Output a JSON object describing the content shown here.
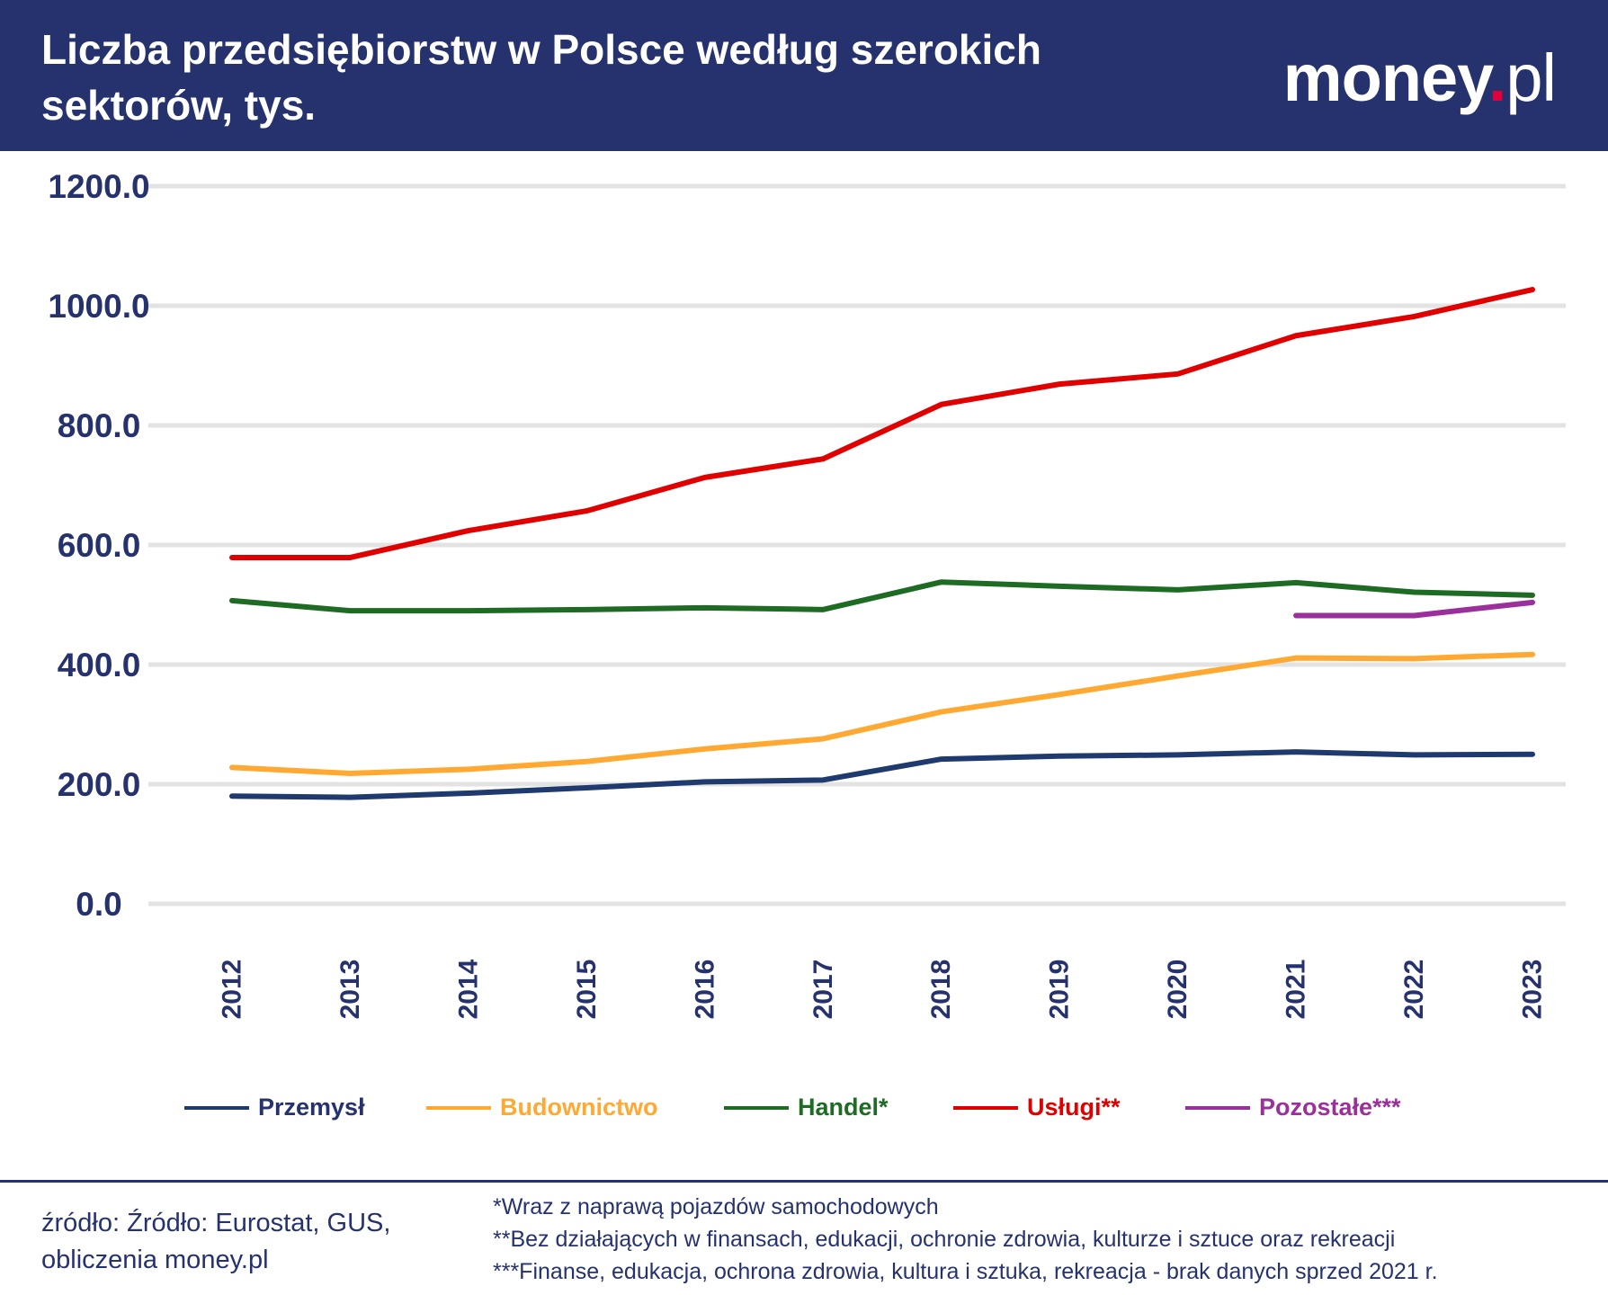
{
  "header": {
    "title": "Liczba przedsiębiorstw w Polsce według szerokich sektorów, tys.",
    "logo": {
      "main": "money",
      "dot": ".",
      "suffix": "pl"
    }
  },
  "chart_data": {
    "type": "line",
    "title": "Liczba przedsiębiorstw w Polsce według szerokich sektorów, tys.",
    "x": [
      "2012",
      "2013",
      "2014",
      "2015",
      "2016",
      "2017",
      "2018",
      "2019",
      "2020",
      "2021",
      "2022",
      "2023"
    ],
    "ylim": [
      0,
      1200
    ],
    "yticks": [
      "0.0",
      "200.0",
      "400.0",
      "600.0",
      "800.0",
      "1000.0",
      "1200.0"
    ],
    "grid": true,
    "legend_position": "bottom",
    "series": [
      {
        "name": "Przemysł",
        "color": "#1f3a6e",
        "values": [
          180,
          178,
          185,
          194,
          204,
          207,
          242,
          247,
          249,
          254,
          249,
          250
        ]
      },
      {
        "name": "Budownictwo",
        "color": "#ffa933",
        "values": [
          228,
          218,
          225,
          238,
          259,
          276,
          321,
          350,
          381,
          411,
          410,
          417
        ]
      },
      {
        "name": "Handel*",
        "color": "#1e6b23",
        "values": [
          507,
          490,
          490,
          492,
          495,
          492,
          538,
          531,
          525,
          537,
          521,
          516
        ]
      },
      {
        "name": "Usługi**",
        "color": "#e00000",
        "values": [
          579,
          579,
          624,
          657,
          713,
          744,
          835,
          869,
          886,
          950,
          982,
          1027
        ]
      },
      {
        "name": "Pozostałe***",
        "color": "#9b2f9b",
        "values": [
          null,
          null,
          null,
          null,
          null,
          null,
          null,
          null,
          null,
          482,
          482,
          504
        ]
      }
    ]
  },
  "legend_text_colors": [
    "#25326e",
    "#ffa933",
    "#1e6b23",
    "#e00000",
    "#9b2f9b"
  ],
  "footer": {
    "source": [
      "źródło: Źródło: Eurostat, GUS,",
      "obliczenia money.pl"
    ],
    "notes": [
      "*Wraz z naprawą pojazdów samochodowych",
      "**Bez działających w finansach, edukacji, ochronie zdrowia, kulturze i sztuce oraz rekreacji",
      "***Finanse, edukacja, ochrona zdrowia, kultura i sztuka, rekreacja - brak danych sprzed 2021 r."
    ]
  }
}
